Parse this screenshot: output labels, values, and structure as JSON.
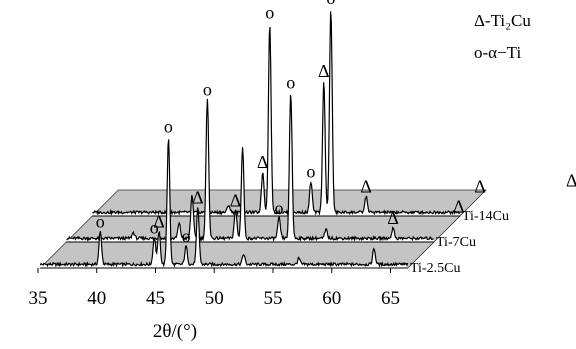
{
  "chart_data": {
    "type": "line",
    "style": "3d-waterfall",
    "title": "",
    "xlabel": "2θ/(°)",
    "ylabel": "",
    "xlim": [
      35,
      68
    ],
    "x_ticks": [
      35,
      40,
      45,
      50,
      55,
      60,
      65
    ],
    "x_tick_labels": [
      "35",
      "40",
      "45",
      "50",
      "55",
      "60",
      "65"
    ],
    "grid": false,
    "legend_position": "top-right",
    "legend": [
      {
        "marker": "Δ",
        "text": "Δ-Ti₂Cu",
        "phase": "Ti2Cu"
      },
      {
        "marker": "o",
        "text": "o-α−Ti",
        "phase": "alpha-Ti"
      }
    ],
    "series": [
      {
        "name": "Ti-2.5Cu",
        "peaks": [
          {
            "x": 40.3,
            "intensity": 45,
            "phase": "alpha-Ti",
            "marker": "o"
          },
          {
            "x": 44.9,
            "intensity": 37,
            "phase": "alpha-Ti",
            "marker": "o"
          },
          {
            "x": 45.3,
            "intensity": 45,
            "phase": "Ti2Cu",
            "marker": "Δ"
          },
          {
            "x": 46.1,
            "intensity": 175,
            "phase": "alpha-Ti",
            "marker": "o"
          },
          {
            "x": 47.6,
            "intensity": 25,
            "phase": "alpha-Ti",
            "marker": "o"
          },
          {
            "x": 48.6,
            "intensity": 78,
            "phase": "Ti2Cu",
            "marker": "Δ"
          },
          {
            "x": 52.5,
            "intensity": 14,
            "phase": "alpha-Ti",
            "marker": ""
          },
          {
            "x": 57.2,
            "intensity": 8,
            "phase": "",
            "marker": ""
          },
          {
            "x": 63.6,
            "intensity": 22,
            "phase": "Ti2Cu",
            "marker": ""
          }
        ]
      },
      {
        "name": "Ti-7Cu",
        "peaks": [
          {
            "x": 40.9,
            "intensity": 8,
            "phase": "alpha-Ti",
            "marker": ""
          },
          {
            "x": 44.8,
            "intensity": 20,
            "phase": "Ti2Cu",
            "marker": ""
          },
          {
            "x": 45.9,
            "intensity": 60,
            "phase": "alpha-Ti",
            "marker": ""
          },
          {
            "x": 47.2,
            "intensity": 190,
            "phase": "alpha-Ti",
            "marker": "o"
          },
          {
            "x": 49.6,
            "intensity": 38,
            "phase": "Ti2Cu",
            "marker": "Δ"
          },
          {
            "x": 50.2,
            "intensity": 125,
            "phase": "alpha-Ti",
            "marker": ""
          },
          {
            "x": 53.3,
            "intensity": 28,
            "phase": "alpha-Ti",
            "marker": "o"
          },
          {
            "x": 54.3,
            "intensity": 200,
            "phase": "alpha-Ti",
            "marker": "o"
          },
          {
            "x": 57.3,
            "intensity": 12,
            "phase": "",
            "marker": ""
          },
          {
            "x": 63.0,
            "intensity": 14,
            "phase": "Ti2Cu",
            "marker": "Δ"
          },
          {
            "x": 68.6,
            "intensity": 30,
            "phase": "Ti2Cu",
            "marker": "Δ"
          }
        ]
      },
      {
        "name": "Ti-14Cu",
        "peaks": [
          {
            "x": 46.8,
            "intensity": 10,
            "phase": "Ti2Cu",
            "marker": ""
          },
          {
            "x": 49.7,
            "intensity": 55,
            "phase": "Ti2Cu",
            "marker": "Δ"
          },
          {
            "x": 50.3,
            "intensity": 260,
            "phase": "alpha-Ti",
            "marker": "o"
          },
          {
            "x": 53.8,
            "intensity": 42,
            "phase": "alpha-Ti",
            "marker": "o"
          },
          {
            "x": 54.9,
            "intensity": 180,
            "phase": "Ti2Cu",
            "marker": "Δ"
          },
          {
            "x": 55.5,
            "intensity": 280,
            "phase": "alpha-Ti",
            "marker": "o"
          },
          {
            "x": 58.5,
            "intensity": 22,
            "phase": "Ti2Cu",
            "marker": "Δ"
          },
          {
            "x": 68.2,
            "intensity": 22,
            "phase": "Ti2Cu",
            "marker": "Δ"
          },
          {
            "x": 76.0,
            "intensity": 30,
            "phase": "Ti2Cu",
            "marker": "Δ"
          }
        ]
      }
    ]
  }
}
